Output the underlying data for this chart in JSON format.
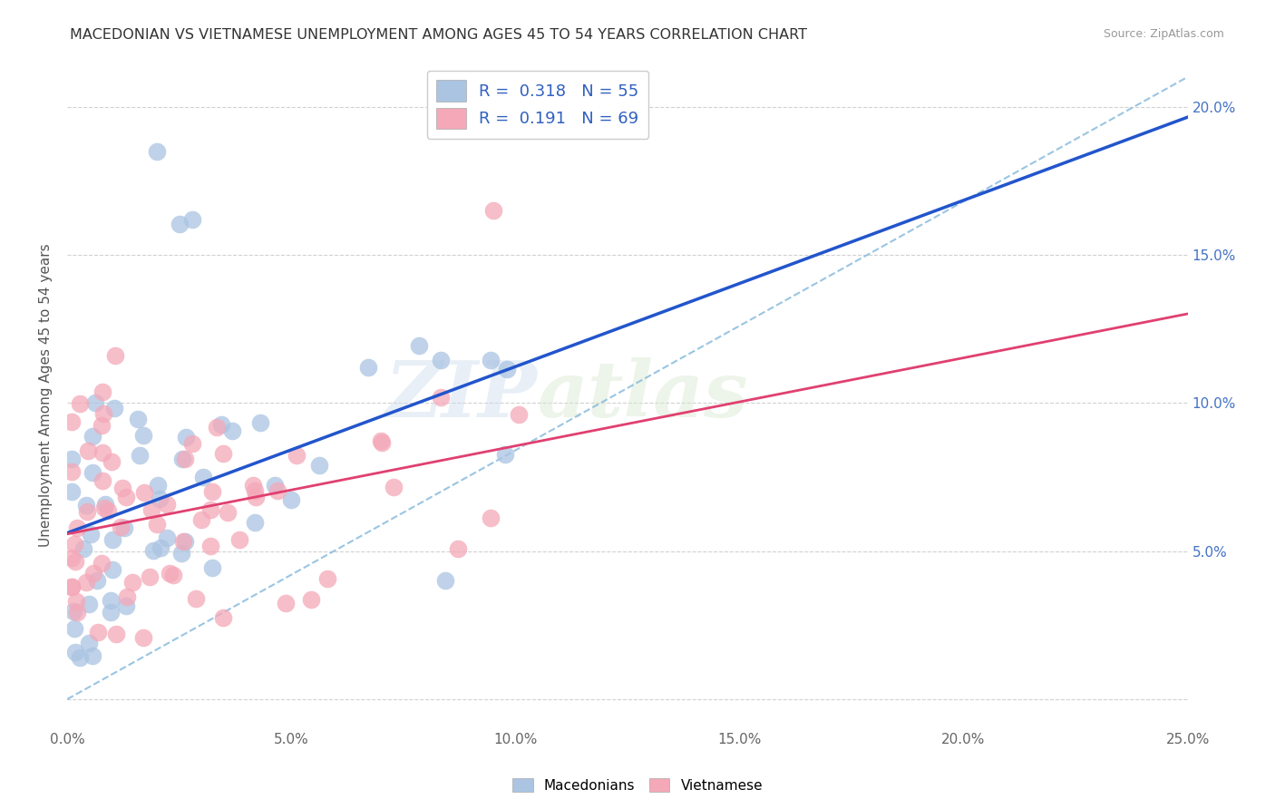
{
  "title": "MACEDONIAN VS VIETNAMESE UNEMPLOYMENT AMONG AGES 45 TO 54 YEARS CORRELATION CHART",
  "source": "Source: ZipAtlas.com",
  "ylabel": "Unemployment Among Ages 45 to 54 years",
  "xlim": [
    0,
    0.25
  ],
  "ylim": [
    -0.01,
    0.215
  ],
  "macedonian_color": "#aac4e2",
  "vietnamese_color": "#f4a8b8",
  "macedonian_R": "0.318",
  "macedonian_N": "55",
  "vietnamese_R": "0.191",
  "vietnamese_N": "69",
  "mac_trend_color": "#2255cc",
  "viet_trend_color": "#e04070",
  "mac_dash_color": "#88bbdd",
  "watermark_zip": "ZIP",
  "watermark_atlas": "atlas",
  "title_fontsize": 11.5,
  "axis_fontsize": 11,
  "legend_fontsize": 13,
  "bottom_legend_labels": [
    "Macedonians",
    "Vietnamese"
  ]
}
